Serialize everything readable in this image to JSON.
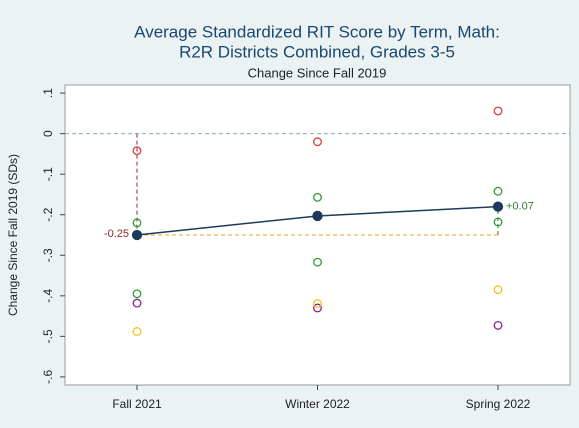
{
  "chart_data": {
    "type": "scatter",
    "title": [
      "Average Standardized RIT Score by Term, Math:",
      "R2R Districts Combined, Grades 3-5"
    ],
    "subtitle": "Change Since Fall 2019",
    "y_label": "Change Since Fall 2019 (SDs)",
    "categories": [
      "Fall 2021",
      "Winter 2022",
      "Spring 2022"
    ],
    "ylim": [
      -0.62,
      0.12
    ],
    "yticks": [
      {
        "value": 0.1,
        "label": ".1"
      },
      0,
      {
        "value": -0.1,
        "label": "-.1"
      },
      {
        "value": -0.2,
        "label": "-.2"
      },
      {
        "value": -0.3,
        "label": "-.3"
      },
      {
        "value": -0.4,
        "label": "-.4"
      },
      {
        "value": -0.5,
        "label": "-.5"
      },
      {
        "value": -0.6,
        "label": "-.6"
      }
    ],
    "reference_line": 0,
    "series": [
      {
        "color": "#e23b3b",
        "marker": "hollow",
        "values": [
          -0.042,
          -0.02,
          0.056
        ]
      },
      {
        "color": "#2f9a35",
        "marker": "hollow",
        "values": [
          -0.22,
          -0.157,
          -0.142
        ]
      },
      {
        "color": "#2f9a35",
        "marker": "hollow",
        "values": [
          -0.395,
          -0.317,
          -0.218
        ]
      },
      {
        "color": "#8e1f8e",
        "marker": "hollow",
        "values": [
          -0.418,
          -0.43,
          -0.473
        ]
      },
      {
        "color": "#f2c31a",
        "marker": "hollow",
        "values": [
          -0.488,
          -0.419,
          -0.385
        ]
      },
      {
        "color": "#1d3a5c",
        "marker": "filled",
        "line": true,
        "values": [
          -0.25,
          -0.203,
          -0.18
        ]
      }
    ],
    "annotations": [
      {
        "text": "-0.25",
        "color": "#8b2a2a"
      },
      {
        "text": "+0.07",
        "color": "#2f7d32"
      }
    ]
  }
}
